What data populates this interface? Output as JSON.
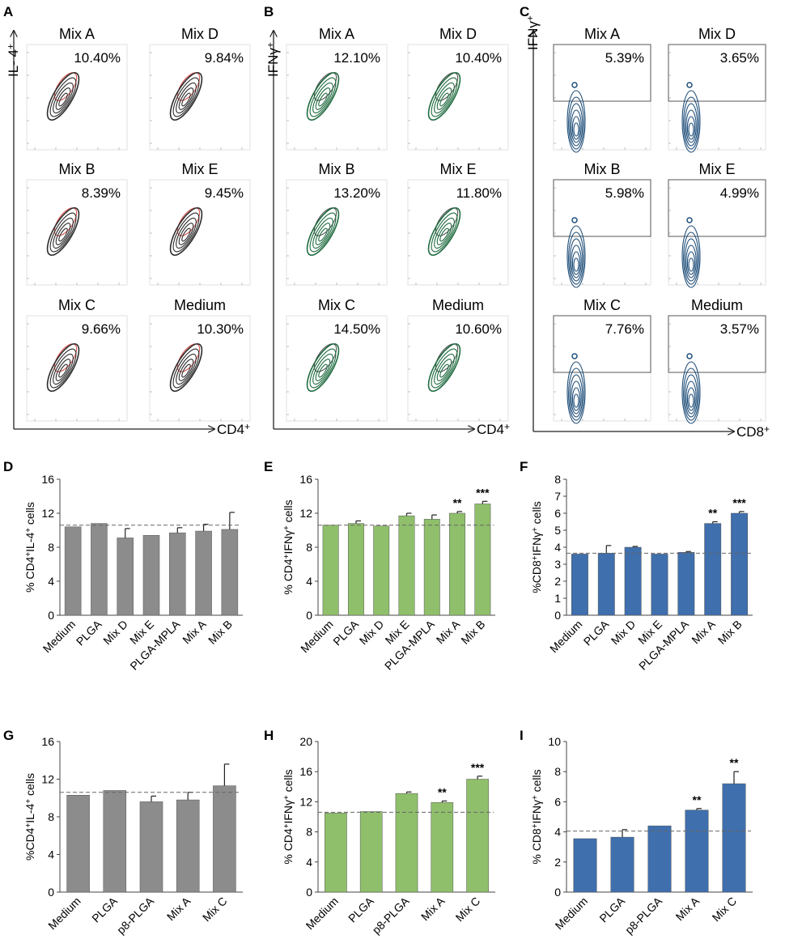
{
  "flow_panels": [
    {
      "label": "A",
      "y_axis": "IL- 4⁺",
      "x_axis": "CD4⁺",
      "color": "#2b2b2b",
      "gate": "oval",
      "cells": [
        {
          "title": "Mix A",
          "pct": "10.40%"
        },
        {
          "title": "Mix D",
          "pct": "9.84%"
        },
        {
          "title": "Mix B",
          "pct": "8.39%"
        },
        {
          "title": "Mix E",
          "pct": "9.45%"
        },
        {
          "title": "Mix C",
          "pct": "9.66%"
        },
        {
          "title": "Medium",
          "pct": "10.30%"
        }
      ]
    },
    {
      "label": "B",
      "y_axis": "IFNγ⁺",
      "x_axis": "CD4⁺",
      "color": "#1f6b3f",
      "gate": "oval-green",
      "cells": [
        {
          "title": "Mix A",
          "pct": "12.10%"
        },
        {
          "title": "Mix D",
          "pct": "10.40%"
        },
        {
          "title": "Mix B",
          "pct": "13.20%"
        },
        {
          "title": "Mix E",
          "pct": "11.80%"
        },
        {
          "title": "Mix C",
          "pct": "14.50%"
        },
        {
          "title": "Medium",
          "pct": "10.60%"
        }
      ]
    },
    {
      "label": "C",
      "y_axis": "IFNγ⁺",
      "x_axis": "CD8⁺",
      "color": "#1f4e79",
      "gate": "rect",
      "cells": [
        {
          "title": "Mix A",
          "pct": "5.39%"
        },
        {
          "title": "Mix D",
          "pct": "3.65%"
        },
        {
          "title": "Mix B",
          "pct": "5.98%"
        },
        {
          "title": "Mix E",
          "pct": "4.99%"
        },
        {
          "title": "Mix C",
          "pct": "7.76%"
        },
        {
          "title": "Medium",
          "pct": "3.57%"
        }
      ]
    }
  ],
  "chart_data": [
    {
      "label": "D",
      "type": "bar",
      "color": "#8c8c8c",
      "ylabel": "% CD4⁺IL-4⁺ cells",
      "categories": [
        "Medium",
        "PLGA",
        "Mix D",
        "Mix E",
        "PLGA-MPLA",
        "Mix A",
        "Mix B"
      ],
      "values": [
        10.4,
        10.8,
        9.1,
        9.4,
        9.7,
        9.9,
        10.1
      ],
      "errors": [
        0,
        0,
        1.1,
        0,
        0.6,
        0.8,
        2.0
      ],
      "stars": [
        "",
        "",
        "",
        "",
        "",
        "",
        ""
      ],
      "ylim": [
        0,
        16
      ],
      "yticks": [
        0,
        4,
        8,
        12,
        16
      ],
      "baseline": 10.6
    },
    {
      "label": "E",
      "type": "bar",
      "color": "#8fbf6b",
      "ylabel": "% CD4⁺IFNγ⁺ cells",
      "categories": [
        "Medium",
        "PLGA",
        "Mix D",
        "Mix E",
        "PLGA-MPLA",
        "Mix A",
        "Mix B"
      ],
      "values": [
        10.6,
        10.8,
        10.5,
        11.7,
        11.3,
        12.0,
        13.1
      ],
      "errors": [
        0,
        0.3,
        0,
        0.3,
        0.5,
        0.2,
        0.3
      ],
      "stars": [
        "",
        "",
        "",
        "",
        "",
        "**",
        "***"
      ],
      "ylim": [
        0,
        16
      ],
      "yticks": [
        0,
        4,
        8,
        12,
        16
      ],
      "baseline": 10.6
    },
    {
      "label": "F",
      "type": "bar",
      "color": "#3f6fad",
      "ylabel": "%CD8⁺IFNγ⁺ cells",
      "categories": [
        "Medium",
        "PLGA",
        "Mix D",
        "Mix E",
        "PLGA-MPLA",
        "Mix A",
        "Mix B"
      ],
      "values": [
        3.6,
        3.65,
        4.0,
        3.6,
        3.7,
        5.4,
        6.0
      ],
      "errors": [
        0,
        0.45,
        0.05,
        0,
        0.05,
        0.1,
        0.1
      ],
      "stars": [
        "",
        "",
        "",
        "",
        "",
        "**",
        "***"
      ],
      "ylim": [
        0,
        8
      ],
      "yticks": [
        0,
        1,
        2,
        3,
        4,
        5,
        6,
        7,
        8
      ],
      "baseline": 3.65
    },
    {
      "label": "G",
      "type": "bar",
      "color": "#8c8c8c",
      "ylabel": "%CD4⁺IL-4⁺ cells",
      "categories": [
        "Medium",
        "PLGA",
        "p8-PLGA",
        "Mix A",
        "Mix C"
      ],
      "values": [
        10.3,
        10.8,
        9.6,
        9.8,
        11.3
      ],
      "errors": [
        0,
        0,
        0.6,
        0.8,
        2.3
      ],
      "stars": [
        "",
        "",
        "",
        "",
        ""
      ],
      "ylim": [
        0,
        16
      ],
      "yticks": [
        0,
        4,
        8,
        12,
        16
      ],
      "baseline": 10.6
    },
    {
      "label": "H",
      "type": "bar",
      "color": "#8fbf6b",
      "ylabel": "% CD4⁺IFNγ⁺ cells",
      "categories": [
        "Medium",
        "PLGA",
        "p8-PLGA",
        "Mix A",
        "Mix C"
      ],
      "values": [
        10.5,
        10.7,
        13.1,
        11.9,
        15.0
      ],
      "errors": [
        0,
        0,
        0.2,
        0.2,
        0.4
      ],
      "stars": [
        "",
        "",
        "",
        "**",
        "***"
      ],
      "ylim": [
        0,
        20
      ],
      "yticks": [
        0,
        4,
        8,
        12,
        16,
        20
      ],
      "baseline": 10.6
    },
    {
      "label": "I",
      "type": "bar",
      "color": "#3f6fad",
      "ylabel": "% CD8⁺IFNγ⁺ cells",
      "categories": [
        "Medium",
        "PLGA",
        "p8-PLGA",
        "Mix A",
        "Mix C"
      ],
      "values": [
        3.55,
        3.65,
        4.4,
        5.45,
        7.2
      ],
      "errors": [
        0,
        0.5,
        0,
        0.1,
        0.8
      ],
      "stars": [
        "",
        "",
        "",
        "**",
        "**"
      ],
      "ylim": [
        0,
        10
      ],
      "yticks": [
        0,
        2,
        4,
        6,
        8,
        10
      ],
      "baseline": 4.05
    }
  ]
}
